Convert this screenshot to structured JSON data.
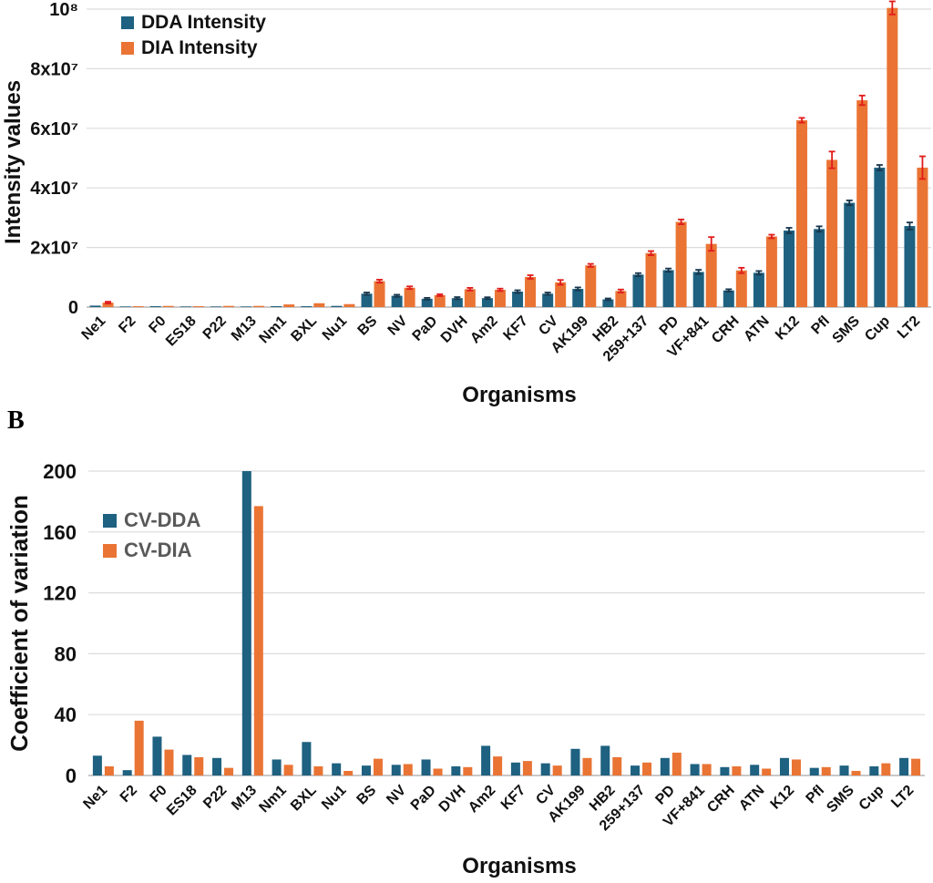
{
  "page": {
    "panel_b_label": "B"
  },
  "colors": {
    "dda": "#1e6180",
    "dia": "#ea7434",
    "err_dda": "#17364d",
    "err_dia": "#e11b1b",
    "grid": "#dcdcdc",
    "baseline": "#b5b5b5",
    "text": "#111111",
    "legend_b_text": "#595959"
  },
  "chart_data": [
    {
      "type": "bar",
      "panel": "A",
      "xlabel": "Organisms",
      "ylabel": "Intensity values",
      "ylim": [
        0,
        100000000
      ],
      "yticks": [
        0,
        20000000,
        40000000,
        60000000,
        80000000,
        100000000
      ],
      "ytick_labels": [
        "0",
        "2x10⁷",
        "4x10⁷",
        "6x10⁷",
        "8x10⁷",
        "10⁸"
      ],
      "grid": "horizontal",
      "legend_position": "top-left",
      "categories": [
        "Ne1",
        "F2",
        "F0",
        "ES18",
        "P22",
        "M13",
        "Nm1",
        "BXL",
        "Nu1",
        "BS",
        "NV",
        "PaD",
        "DVH",
        "Am2",
        "KF7",
        "CV",
        "AK199",
        "HB2",
        "259+137",
        "PD",
        "VF+841",
        "CRH",
        "ATN",
        "K12",
        "Pfl",
        "SMS",
        "Cup",
        "LT2"
      ],
      "series": [
        {
          "name": "DDA Intensity",
          "values": [
            500000,
            200000,
            300000,
            200000,
            200000,
            200000,
            300000,
            300000,
            400000,
            4500000,
            3800000,
            2800000,
            3000000,
            3000000,
            5200000,
            4500000,
            6100000,
            2600000,
            10900000,
            12400000,
            11800000,
            5600000,
            11500000,
            25700000,
            26200000,
            35000000,
            46800000,
            27200000
          ],
          "errors": [
            150000,
            50000,
            50000,
            50000,
            50000,
            50000,
            80000,
            80000,
            100000,
            400000,
            350000,
            300000,
            350000,
            300000,
            450000,
            400000,
            500000,
            300000,
            500000,
            550000,
            700000,
            400000,
            600000,
            900000,
            900000,
            800000,
            900000,
            1200000
          ]
        },
        {
          "name": "DIA Intensity",
          "values": [
            1500000,
            300000,
            400000,
            300000,
            400000,
            400000,
            900000,
            1300000,
            1000000,
            8700000,
            6500000,
            4000000,
            6000000,
            5800000,
            10100000,
            8300000,
            14000000,
            5400000,
            18100000,
            28600000,
            21200000,
            12300000,
            23700000,
            62700000,
            49400000,
            69400000,
            100400000,
            46800000
          ],
          "errors": [
            300000,
            80000,
            80000,
            80000,
            80000,
            80000,
            150000,
            200000,
            150000,
            500000,
            450000,
            300000,
            450000,
            400000,
            600000,
            800000,
            500000,
            500000,
            700000,
            800000,
            2300000,
            900000,
            600000,
            800000,
            2800000,
            1600000,
            2200000,
            3800000
          ]
        }
      ]
    },
    {
      "type": "bar",
      "panel": "B",
      "xlabel": "Organisms",
      "ylabel": "Coefficient of variation",
      "ylim": [
        0,
        200
      ],
      "yticks": [
        0,
        40,
        80,
        120,
        160,
        200
      ],
      "ytick_labels": [
        "0",
        "40",
        "80",
        "120",
        "160",
        "200"
      ],
      "grid": "horizontal",
      "legend_position": "top-left",
      "categories": [
        "Ne1",
        "F2",
        "F0",
        "ES18",
        "P22",
        "M13",
        "Nm1",
        "BXL",
        "Nu1",
        "BS",
        "NV",
        "PaD",
        "DVH",
        "Am2",
        "KF7",
        "CV",
        "AK199",
        "HB2",
        "259+137",
        "PD",
        "VF+841",
        "CRH",
        "ATN",
        "K12",
        "Pfl",
        "SMS",
        "Cup",
        "LT2"
      ],
      "series": [
        {
          "name": "CV-DDA",
          "values": [
            13,
            3.5,
            25.5,
            13.5,
            11.5,
            200,
            10.5,
            22,
            8,
            6.5,
            7,
            10.5,
            6,
            19.5,
            8.5,
            8,
            17.5,
            19.5,
            6.5,
            11.5,
            7.5,
            5.5,
            7,
            11.5,
            5,
            6.5,
            6,
            11.5
          ]
        },
        {
          "name": "CV-DIA",
          "values": [
            6,
            36,
            17,
            12,
            5,
            177,
            7,
            6,
            3,
            11,
            7.5,
            4.5,
            5.5,
            12.5,
            9.5,
            6.5,
            11.5,
            12,
            8.5,
            15,
            7.5,
            6,
            4.5,
            10.5,
            5.5,
            3,
            8,
            11
          ]
        }
      ]
    }
  ]
}
